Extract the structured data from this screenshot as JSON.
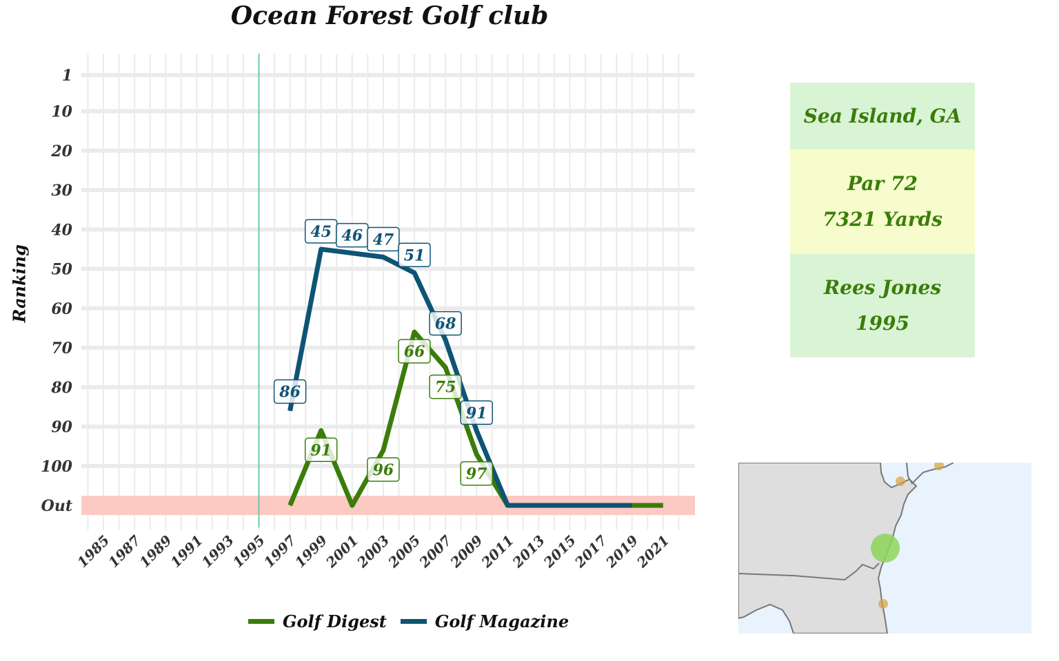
{
  "title": "Ocean Forest Golf club",
  "info": {
    "location": "Sea Island, GA",
    "par": "Par 72",
    "yards": "7321 Yards",
    "architect": "Rees Jones",
    "year": "1995"
  },
  "colors": {
    "golf_digest": "#3a7d0a",
    "golf_magazine": "#0e5474",
    "out_band": "#fdc9c3",
    "vline": "#6cc9a5",
    "info_green": "#d9f4d4",
    "info_yellow": "#f6fccb",
    "map_land": "#dedede",
    "map_water": "#e9f3fd",
    "map_marker": "#8cd65a",
    "map_dots": "#d9a13f"
  },
  "chart_data": {
    "type": "line",
    "ylabel": "Ranking",
    "xlabel": "",
    "x_ticks": [
      "1985",
      "1987",
      "1989",
      "1991",
      "1993",
      "1995",
      "1997",
      "1999",
      "2001",
      "2003",
      "2005",
      "2007",
      "2009",
      "2011",
      "2013",
      "2015",
      "2017",
      "2019",
      "2021"
    ],
    "y_ticks": [
      "1",
      "10",
      "20",
      "30",
      "40",
      "50",
      "60",
      "70",
      "80",
      "90",
      "100",
      "Out"
    ],
    "y_reversed": true,
    "xlim": [
      1984,
      2022
    ],
    "opened_year": 1995,
    "out_value": "Out",
    "grid": true,
    "legend_position": "bottom",
    "series": [
      {
        "name": "Golf Digest",
        "color": "#3a7d0a",
        "points": [
          {
            "x": 1997,
            "y": "Out"
          },
          {
            "x": 1999,
            "y": 91
          },
          {
            "x": 2001,
            "y": "Out"
          },
          {
            "x": 2003,
            "y": 96
          },
          {
            "x": 2005,
            "y": 66
          },
          {
            "x": 2007,
            "y": 75
          },
          {
            "x": 2009,
            "y": 97
          },
          {
            "x": 2011,
            "y": "Out"
          },
          {
            "x": 2013,
            "y": "Out"
          },
          {
            "x": 2015,
            "y": "Out"
          },
          {
            "x": 2017,
            "y": "Out"
          },
          {
            "x": 2019,
            "y": "Out"
          },
          {
            "x": 2021,
            "y": "Out"
          }
        ]
      },
      {
        "name": "Golf Magazine",
        "color": "#0e5474",
        "points": [
          {
            "x": 1997,
            "y": 86
          },
          {
            "x": 1999,
            "y": 45
          },
          {
            "x": 2001,
            "y": 46
          },
          {
            "x": 2003,
            "y": 47
          },
          {
            "x": 2005,
            "y": 51
          },
          {
            "x": 2007,
            "y": 68
          },
          {
            "x": 2009,
            "y": 91
          },
          {
            "x": 2011,
            "y": "Out"
          },
          {
            "x": 2013,
            "y": "Out"
          },
          {
            "x": 2015,
            "y": "Out"
          },
          {
            "x": 2017,
            "y": "Out"
          },
          {
            "x": 2019,
            "y": "Out"
          }
        ]
      }
    ]
  }
}
